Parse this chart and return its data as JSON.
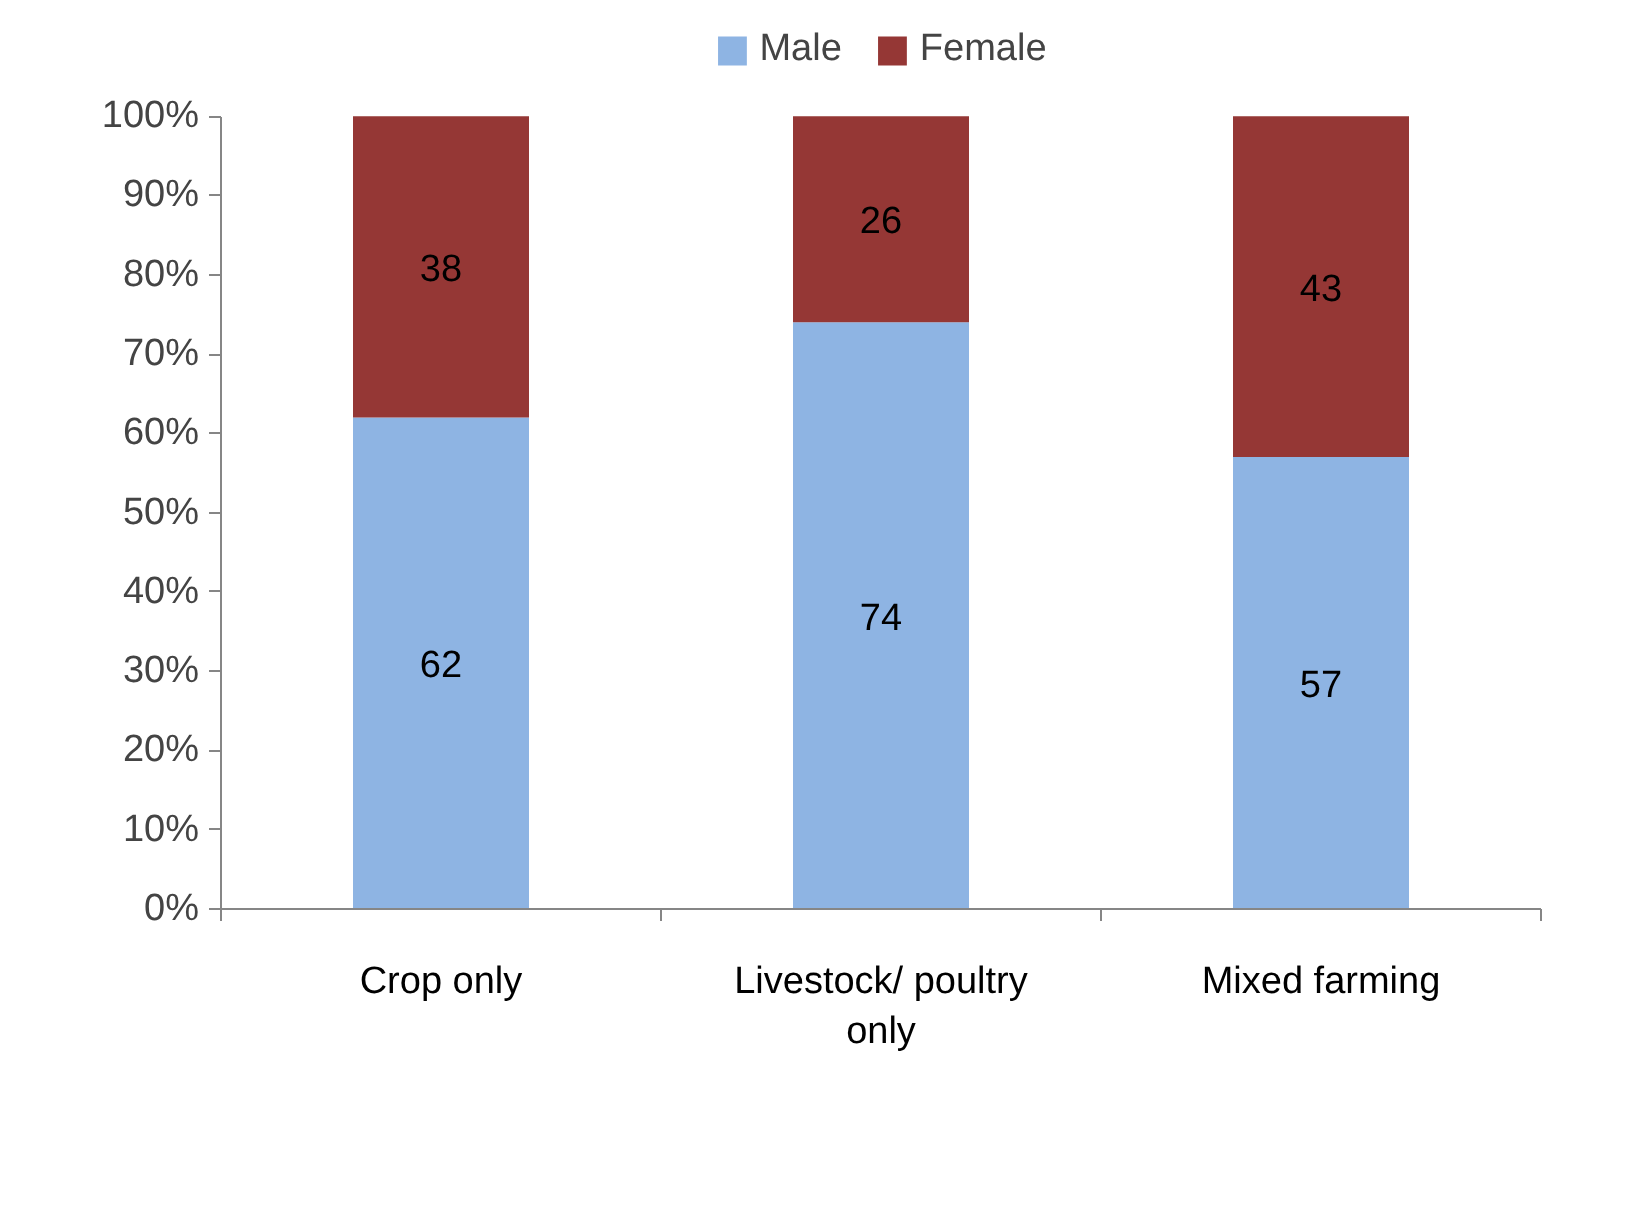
{
  "chart_data": {
    "type": "bar",
    "stacked": true,
    "categories": [
      "Crop only",
      "Livestock/ poultry only",
      "Mixed farming"
    ],
    "series": [
      {
        "name": "Male",
        "color": "#8eb4e3",
        "values": [
          62,
          74,
          57
        ]
      },
      {
        "name": "Female",
        "color": "#953735",
        "values": [
          38,
          26,
          43
        ]
      }
    ],
    "ylim": [
      0,
      100
    ],
    "yticks": [
      {
        "value": 0,
        "label": "0%"
      },
      {
        "value": 10,
        "label": "10%"
      },
      {
        "value": 20,
        "label": "20%"
      },
      {
        "value": 30,
        "label": "30%"
      },
      {
        "value": 40,
        "label": "40%"
      },
      {
        "value": 50,
        "label": "50%"
      },
      {
        "value": 60,
        "label": "60%"
      },
      {
        "value": 70,
        "label": "70%"
      },
      {
        "value": 80,
        "label": "80%"
      },
      {
        "value": 90,
        "label": "90%"
      },
      {
        "value": 100,
        "label": "100%"
      }
    ],
    "data_labels": true,
    "grid": false,
    "legend": "top"
  }
}
